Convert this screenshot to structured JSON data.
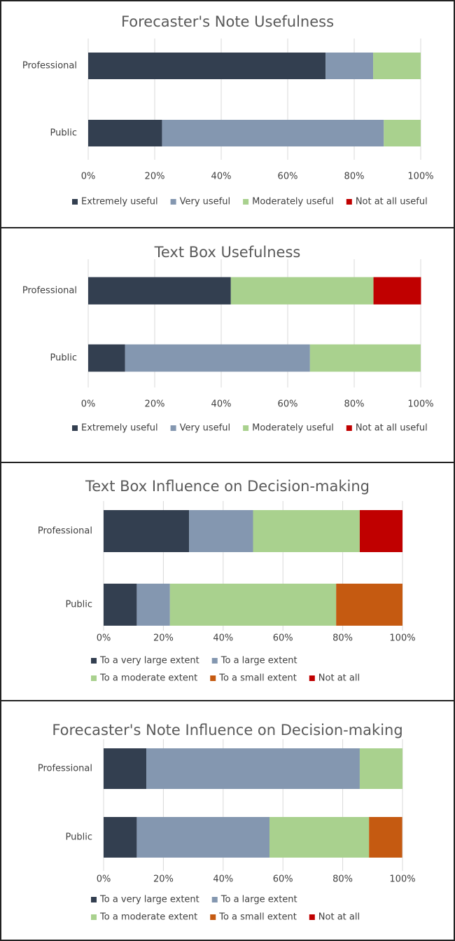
{
  "chart_data": [
    {
      "type": "bar",
      "orientation": "horizontal",
      "stacked": true,
      "title": "Forecaster's Note Usefulness",
      "categories": [
        "Professional",
        "Public"
      ],
      "series": [
        {
          "name": "Extremely useful",
          "color": "#333f50",
          "values": [
            71.4,
            22.2
          ]
        },
        {
          "name": "Very useful",
          "color": "#8497b0",
          "values": [
            14.3,
            66.7
          ]
        },
        {
          "name": "Moderately useful",
          "color": "#a9d18e",
          "values": [
            14.3,
            11.1
          ]
        },
        {
          "name": "Not at all useful",
          "color": "#c00000",
          "values": [
            0,
            0
          ]
        }
      ],
      "xlim": [
        0,
        100
      ],
      "xticks": [
        {
          "value": 0,
          "label": "0%"
        },
        {
          "value": 20,
          "label": "20%"
        },
        {
          "value": 40,
          "label": "40%"
        },
        {
          "value": 60,
          "label": "60%"
        },
        {
          "value": 80,
          "label": "80%"
        },
        {
          "value": 100,
          "label": "100%"
        }
      ],
      "grid": true,
      "legend": "bottom"
    },
    {
      "type": "bar",
      "orientation": "horizontal",
      "stacked": true,
      "title": "Text Box Usefulness",
      "categories": [
        "Professional",
        "Public"
      ],
      "series": [
        {
          "name": "Extremely useful",
          "color": "#333f50",
          "values": [
            42.9,
            11.1
          ]
        },
        {
          "name": "Very useful",
          "color": "#8497b0",
          "values": [
            0,
            55.6
          ]
        },
        {
          "name": "Moderately useful",
          "color": "#a9d18e",
          "values": [
            42.9,
            33.3
          ]
        },
        {
          "name": "Not at all useful",
          "color": "#c00000",
          "values": [
            14.3,
            0
          ]
        }
      ],
      "xlim": [
        0,
        100
      ],
      "xticks": [
        {
          "value": 0,
          "label": "0%"
        },
        {
          "value": 20,
          "label": "20%"
        },
        {
          "value": 40,
          "label": "40%"
        },
        {
          "value": 60,
          "label": "60%"
        },
        {
          "value": 80,
          "label": "80%"
        },
        {
          "value": 100,
          "label": "100%"
        }
      ],
      "grid": true,
      "legend": "bottom"
    },
    {
      "type": "bar",
      "orientation": "horizontal",
      "stacked": true,
      "title": "Text Box Influence on Decision-making",
      "categories": [
        "Professional",
        "Public"
      ],
      "series": [
        {
          "name": "To a very large extent",
          "color": "#333f50",
          "values": [
            28.6,
            11.1
          ]
        },
        {
          "name": "To a large extent",
          "color": "#8497b0",
          "values": [
            21.4,
            11.1
          ]
        },
        {
          "name": "To a moderate extent",
          "color": "#a9d18e",
          "values": [
            35.7,
            55.6
          ]
        },
        {
          "name": "To a small extent",
          "color": "#c55a11",
          "values": [
            0,
            22.2
          ]
        },
        {
          "name": "Not at all",
          "color": "#c00000",
          "values": [
            14.3,
            0
          ]
        }
      ],
      "xlim": [
        0,
        100
      ],
      "xticks": [
        {
          "value": 0,
          "label": "0%"
        },
        {
          "value": 20,
          "label": "20%"
        },
        {
          "value": 40,
          "label": "40%"
        },
        {
          "value": 60,
          "label": "60%"
        },
        {
          "value": 80,
          "label": "80%"
        },
        {
          "value": 100,
          "label": "100%"
        }
      ],
      "grid": true,
      "legend": "bottom"
    },
    {
      "type": "bar",
      "orientation": "horizontal",
      "stacked": true,
      "title": "Forecaster's Note Influence on Decision-making",
      "categories": [
        "Professional",
        "Public"
      ],
      "series": [
        {
          "name": "To a very large extent",
          "color": "#333f50",
          "values": [
            14.3,
            11.1
          ]
        },
        {
          "name": "To a large extent",
          "color": "#8497b0",
          "values": [
            71.4,
            44.4
          ]
        },
        {
          "name": "To a moderate extent",
          "color": "#a9d18e",
          "values": [
            14.3,
            33.3
          ]
        },
        {
          "name": "To a small extent",
          "color": "#c55a11",
          "values": [
            0,
            11.1
          ]
        },
        {
          "name": "Not at all",
          "color": "#c00000",
          "values": [
            0,
            0
          ]
        }
      ],
      "xlim": [
        0,
        100
      ],
      "xticks": [
        {
          "value": 0,
          "label": "0%"
        },
        {
          "value": 20,
          "label": "20%"
        },
        {
          "value": 40,
          "label": "40%"
        },
        {
          "value": 60,
          "label": "60%"
        },
        {
          "value": 80,
          "label": "80%"
        },
        {
          "value": 100,
          "label": "100%"
        }
      ],
      "grid": true,
      "legend": "bottom"
    }
  ]
}
